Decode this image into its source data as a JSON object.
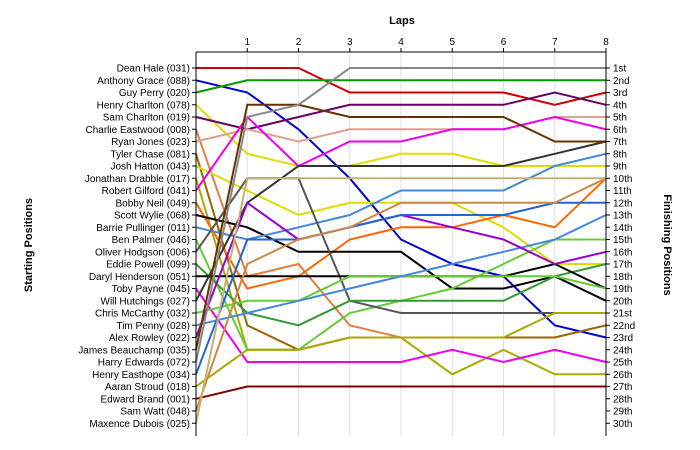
{
  "chart_data": {
    "type": "line",
    "title": "",
    "xlabel": "Laps",
    "ylabel_left": "Starting Positions",
    "ylabel_right": "Finishing Positions",
    "x": [
      0,
      1,
      2,
      3,
      4,
      5,
      6,
      7,
      8
    ],
    "x_tick_labels": [
      "1",
      "2",
      "3",
      "4",
      "5",
      "6",
      "7",
      "8"
    ],
    "y_range": [
      1,
      30
    ],
    "grid": "vertical",
    "left_labels": [
      "Dean Hale (031)",
      "Anthony Grace (088)",
      "Guy Perry (020)",
      "Henry Charlton (078)",
      "Sam Charlton (019)",
      "Charlie Eastwood (008)",
      "Ryan Jones (023)",
      "Tyler Chase (081)",
      "Josh Hatton (043)",
      "Jonathan Drabble (017)",
      "Robert Gilford (041)",
      "Bobby Neil (049)",
      "Scott Wylie (068)",
      "Barrie Pullinger (011)",
      "Ben Palmer (046)",
      "Oliver Hodgson (006)",
      "Eddie Powell (099)",
      "Daryl Henderson (051)",
      "Toby Payne (045)",
      "Will Hutchings (027)",
      "Chris McCarthy (032)",
      "Tim Penny (028)",
      "Alex Rowley (022)",
      "James Beauchamp (035)",
      "Harry Edwards (072)",
      "Henry Easthope (034)",
      "Aaran Stroud (018)",
      "Edward Brand (001)",
      "Sam Watt (048)",
      "Maxence Dubois (025)"
    ],
    "right_labels": [
      "1st",
      "2nd",
      "3rd",
      "4th",
      "5th",
      "6th",
      "7th",
      "8th",
      "9th",
      "10th",
      "11th",
      "12th",
      "13th",
      "14th",
      "15th",
      "16th",
      "17th",
      "18th",
      "19th",
      "20th",
      "21st",
      "22nd",
      "23rd",
      "24th",
      "25th",
      "26th",
      "27th",
      "28th",
      "29th",
      "30th"
    ],
    "series": [
      {
        "color": "#cc0000",
        "values": [
          1,
          1,
          1,
          3,
          3,
          3,
          3,
          4,
          3
        ]
      },
      {
        "color": "#0000cc",
        "values": [
          2,
          3,
          6,
          10,
          15,
          17,
          18,
          22,
          23
        ]
      },
      {
        "color": "#009900",
        "values": [
          3,
          2,
          2,
          2,
          2,
          2,
          2,
          2,
          2
        ]
      },
      {
        "color": "#dddd00",
        "values": [
          4,
          8,
          9,
          9,
          8,
          8,
          9,
          9,
          9
        ]
      },
      {
        "color": "#660066",
        "values": [
          5,
          6,
          5,
          4,
          4,
          4,
          4,
          3,
          4
        ]
      },
      {
        "color": "#e08040",
        "values": [
          6,
          18,
          17,
          22,
          23,
          23,
          23,
          23,
          22
        ]
      },
      {
        "color": "#e0a090",
        "values": [
          7,
          6,
          7,
          6,
          6,
          6,
          6,
          5,
          5
        ]
      },
      {
        "color": "#996600",
        "values": [
          8,
          22,
          24,
          23,
          23,
          23,
          23,
          23,
          22
        ]
      },
      {
        "color": "#dddd00",
        "values": [
          9,
          11,
          13,
          12,
          12,
          12,
          14,
          17,
          17
        ]
      },
      {
        "color": "#aaaa00",
        "values": [
          10,
          24,
          24,
          23,
          23,
          26,
          24,
          26,
          26
        ]
      },
      {
        "color": "#ee00ee",
        "values": [
          11,
          5,
          9,
          7,
          7,
          6,
          6,
          5,
          6
        ]
      },
      {
        "color": "#ff6600",
        "values": [
          12,
          19,
          18,
          15,
          14,
          14,
          13,
          14,
          10
        ]
      },
      {
        "color": "#000000",
        "values": [
          13,
          14,
          16,
          16,
          16,
          19,
          19,
          18,
          20
        ]
      },
      {
        "color": "#4488dd",
        "values": [
          14,
          15,
          14,
          13,
          11,
          11,
          11,
          9,
          8
        ]
      },
      {
        "color": "#66cc33",
        "values": [
          15,
          24,
          24,
          21,
          20,
          19,
          17,
          15,
          15
        ]
      },
      {
        "color": "#555555",
        "values": [
          16,
          10,
          10,
          20,
          21,
          21,
          21,
          21,
          21
        ]
      },
      {
        "color": "#339933",
        "values": [
          17,
          21,
          22,
          20,
          20,
          20,
          20,
          18,
          17
        ]
      },
      {
        "color": "#000000",
        "values": [
          18,
          18,
          18,
          18,
          18,
          18,
          18,
          17,
          19
        ]
      },
      {
        "color": "#ee00ee",
        "values": [
          19,
          25,
          25,
          25,
          25,
          24,
          25,
          24,
          25
        ]
      },
      {
        "color": "#333333",
        "values": [
          20,
          12,
          9,
          9,
          9,
          9,
          9,
          8,
          7
        ]
      },
      {
        "color": "#66cc33",
        "values": [
          21,
          20,
          20,
          18,
          18,
          18,
          18,
          18,
          19
        ]
      },
      {
        "color": "#4488dd",
        "values": [
          22,
          21,
          20,
          19,
          18,
          17,
          16,
          15,
          13
        ]
      },
      {
        "color": "#9900cc",
        "values": [
          23,
          12,
          15,
          14,
          13,
          14,
          15,
          17,
          16
        ]
      },
      {
        "color": "#663300",
        "values": [
          24,
          4,
          4,
          5,
          5,
          5,
          5,
          7,
          7
        ]
      },
      {
        "color": "#888888",
        "values": [
          25,
          5,
          4,
          1,
          1,
          1,
          1,
          1,
          1
        ]
      },
      {
        "color": "#2266cc",
        "values": [
          26,
          15,
          15,
          14,
          13,
          13,
          13,
          12,
          12
        ]
      },
      {
        "color": "#aaaa00",
        "values": [
          27,
          24,
          24,
          23,
          23,
          23,
          23,
          21,
          21
        ]
      },
      {
        "color": "#800000",
        "values": [
          28,
          27,
          27,
          27,
          27,
          27,
          27,
          27,
          27
        ]
      },
      {
        "color": "#cc8844",
        "values": [
          29,
          17,
          15,
          14,
          12,
          12,
          12,
          12,
          10
        ]
      },
      {
        "color": "#c8b070",
        "values": [
          30,
          10,
          10,
          10,
          10,
          10,
          10,
          10,
          10
        ]
      }
    ]
  }
}
